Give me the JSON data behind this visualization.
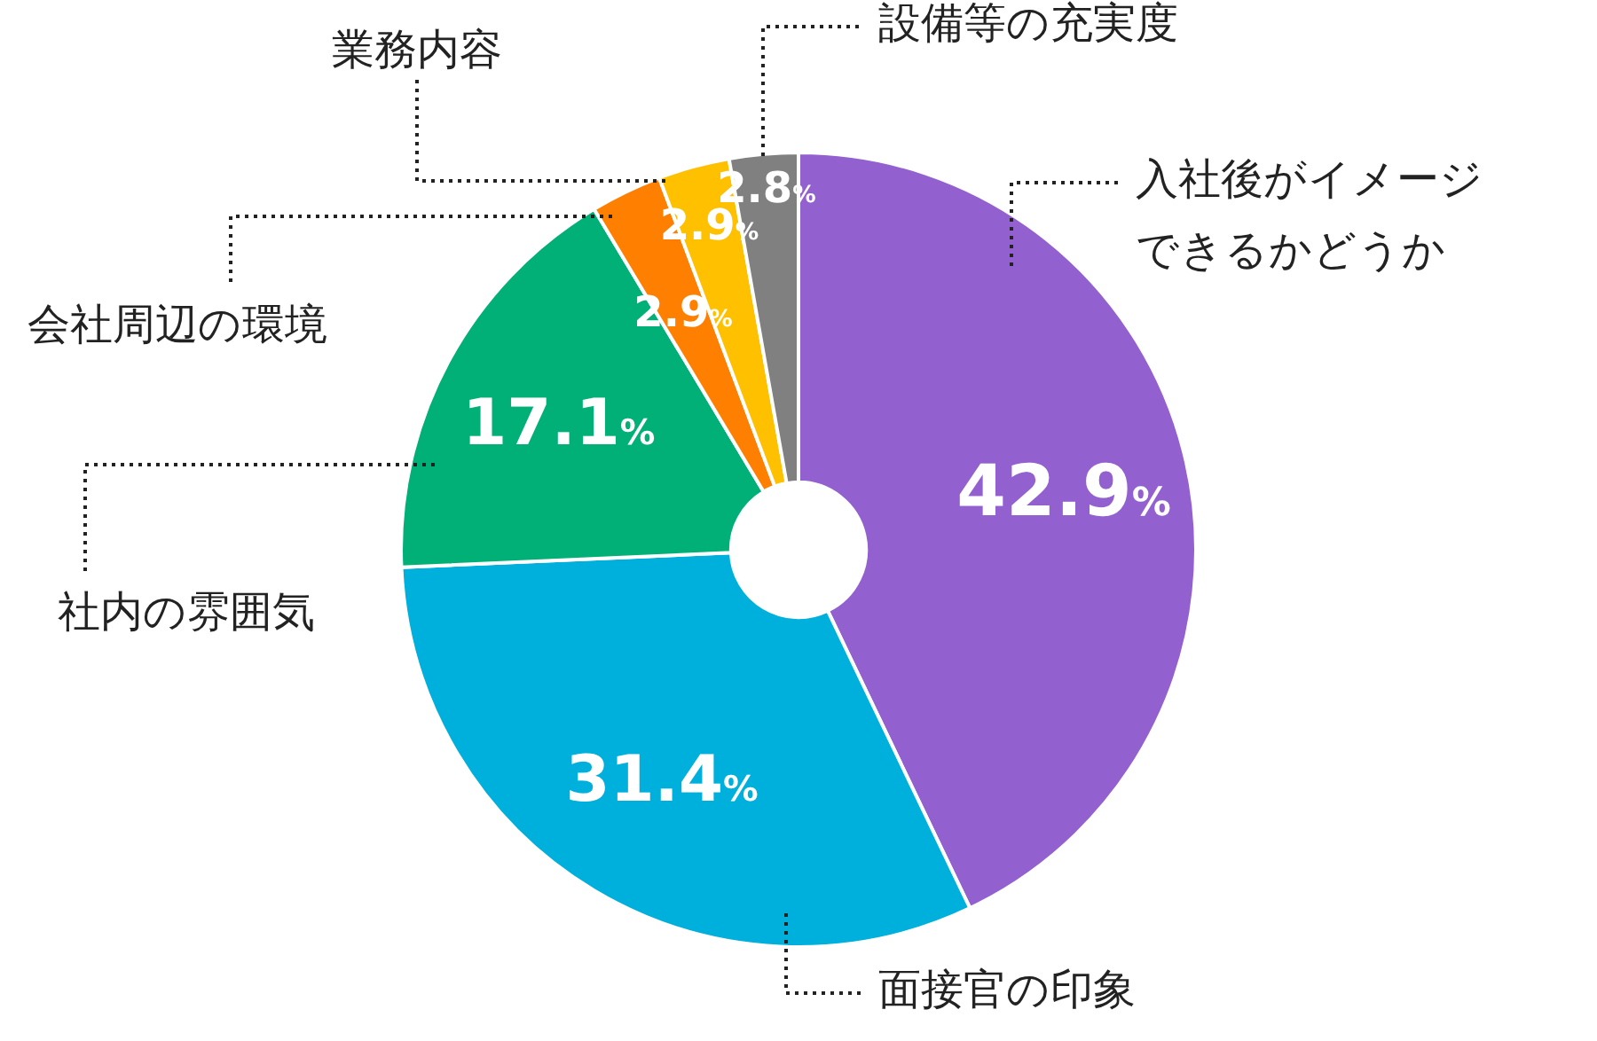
{
  "chart_data": {
    "type": "donut",
    "categories": [
      "入社後がイメージできるかどうか",
      "面接官の印象",
      "社内の雰囲気",
      "会社周辺の環境",
      "業務内容",
      "設備等の充実度"
    ],
    "values": [
      42.9,
      31.4,
      17.1,
      2.9,
      2.9,
      2.8
    ],
    "colors": [
      "#9360d0",
      "#00b0dc",
      "#00b077",
      "#ff7f00",
      "#ffc000",
      "#808080"
    ],
    "value_labels": [
      "42.9%",
      "31.4%",
      "17.1%",
      "2.9%",
      "2.9%",
      "2.8%"
    ]
  }
}
